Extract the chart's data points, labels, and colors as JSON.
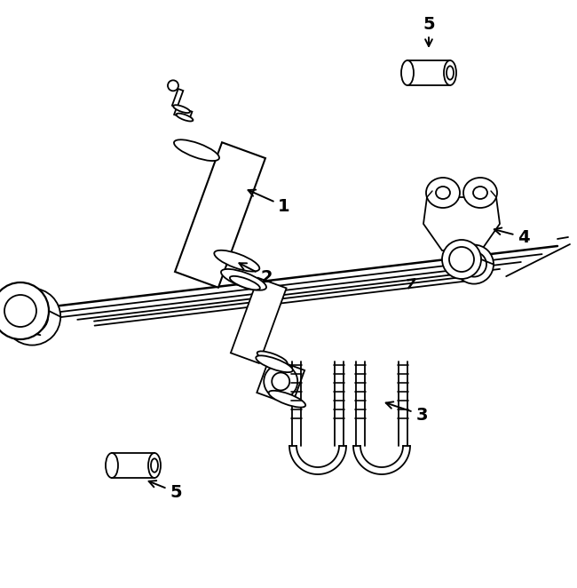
{
  "bg_color": "#ffffff",
  "line_color": "#000000",
  "line_width": 1.3,
  "fig_width": 6.5,
  "fig_height": 6.62
}
